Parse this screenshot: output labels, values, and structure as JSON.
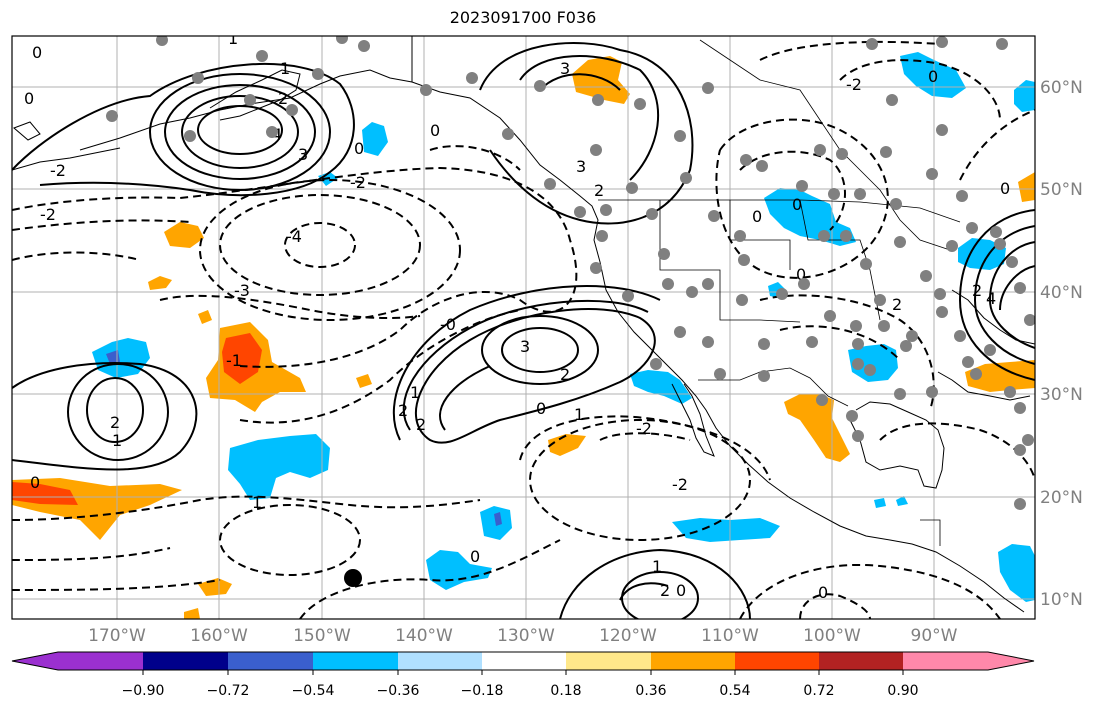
{
  "title": "2023091700 F036",
  "longitude_labels": [
    "170°W",
    "160°W",
    "150°W",
    "140°W",
    "130°W",
    "120°W",
    "110°W",
    "100°W",
    "90°W"
  ],
  "latitude_labels": [
    "60°N",
    "50°N",
    "40°N",
    "30°N",
    "20°N",
    "10°N"
  ],
  "colorbar": {
    "tick_labels": [
      "−0.90",
      "−0.72",
      "−0.54",
      "−0.36",
      "−0.18",
      "0.18",
      "0.36",
      "0.54",
      "0.72",
      "0.90"
    ],
    "colors": [
      "#9b30d0",
      "#00008b",
      "#3a5fcd",
      "#00bfff",
      "#b0e0ff",
      "#ffffff",
      "#ffe88a",
      "#ffa500",
      "#ff4500",
      "#b22222",
      "#ff88aa"
    ]
  },
  "contour_labels": [
    "0",
    "1",
    "2",
    "3",
    "4",
    "-1",
    "-2",
    "-3",
    "-4"
  ],
  "station_color": "#808080",
  "marker_color": "#000000"
}
